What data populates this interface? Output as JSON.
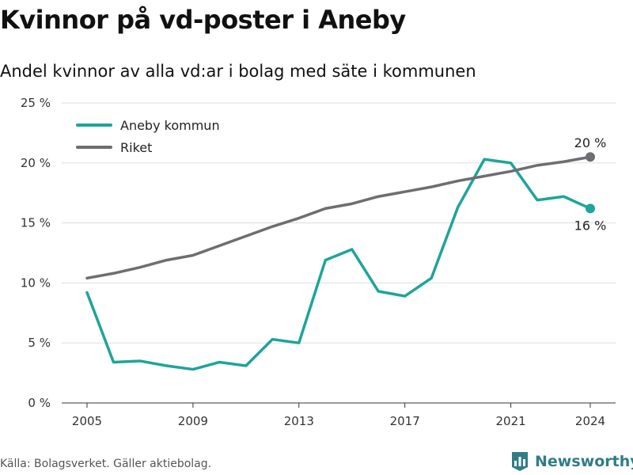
{
  "title": "Kvinnor på vd-poster i Aneby",
  "subtitle": "Andel kvinnor av alla vd:ar i bolag med säte i kommunen",
  "source": "Källa: Bolagsverket. Gäller aktiebolag.",
  "brand": {
    "name": "Newsworthy",
    "color": "#2f7d86",
    "icon": "newsworthy-logo-icon"
  },
  "chart_data": {
    "type": "line",
    "x": [
      2005,
      2006,
      2007,
      2008,
      2009,
      2010,
      2011,
      2012,
      2013,
      2014,
      2015,
      2016,
      2017,
      2018,
      2019,
      2020,
      2021,
      2022,
      2023,
      2024
    ],
    "xticks": [
      2005,
      2009,
      2013,
      2017,
      2021,
      2024
    ],
    "ylim": [
      0,
      25
    ],
    "yticks": [
      0,
      5,
      10,
      15,
      20,
      25
    ],
    "ytick_labels": [
      "0 %",
      "5 %",
      "10 %",
      "15 %",
      "20 %",
      "25 %"
    ],
    "grid": true,
    "legend_position": "top-left",
    "series": [
      {
        "name": "Aneby kommun",
        "color": "#1ea49b",
        "values": [
          9.2,
          3.4,
          3.5,
          3.1,
          2.8,
          3.4,
          3.1,
          5.3,
          5.0,
          11.9,
          12.8,
          9.3,
          8.9,
          10.4,
          16.3,
          20.3,
          20.0,
          16.9,
          17.2,
          16.2
        ],
        "end_label": "16 %"
      },
      {
        "name": "Riket",
        "color": "#6e6d71",
        "values": [
          10.4,
          10.8,
          11.3,
          11.9,
          12.3,
          13.1,
          13.9,
          14.7,
          15.4,
          16.2,
          16.6,
          17.2,
          17.6,
          18.0,
          18.5,
          18.9,
          19.3,
          19.8,
          20.1,
          20.5
        ],
        "end_label": "20 %"
      }
    ]
  }
}
